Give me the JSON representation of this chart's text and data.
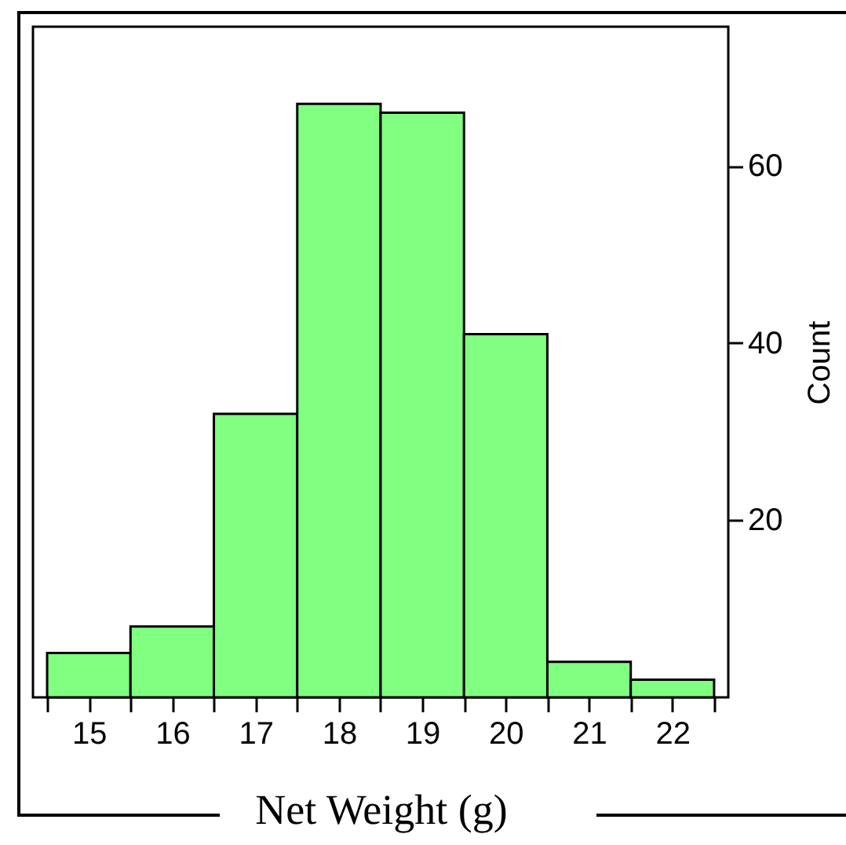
{
  "chart_data": {
    "type": "histogram",
    "xlabel": "Net Weight (g)",
    "ylabel": "Count",
    "bins": [
      14.5,
      15.5,
      16.5,
      17.5,
      18.5,
      19.5,
      20.5,
      21.5,
      22.5
    ],
    "values": [
      5,
      8,
      32,
      67,
      66,
      41,
      4,
      2
    ],
    "color": "#80ff80",
    "xlim": [
      14.33,
      22.67
    ],
    "ylim": [
      0,
      75.7
    ],
    "xticks": [
      {
        "value": 14.5,
        "label": null
      },
      15,
      {
        "value": 15.5,
        "label": null
      },
      16,
      {
        "value": 16.5,
        "label": null
      },
      17,
      {
        "value": 17.5,
        "label": null
      },
      18,
      {
        "value": 18.5,
        "label": null
      },
      19,
      {
        "value": 19.5,
        "label": null
      },
      20,
      {
        "value": 20.5,
        "label": null
      },
      21,
      {
        "value": 21.5,
        "label": null
      },
      22,
      {
        "value": 22.5,
        "label": null
      }
    ],
    "yticks": [
      20,
      40,
      60
    ],
    "grid": false
  }
}
